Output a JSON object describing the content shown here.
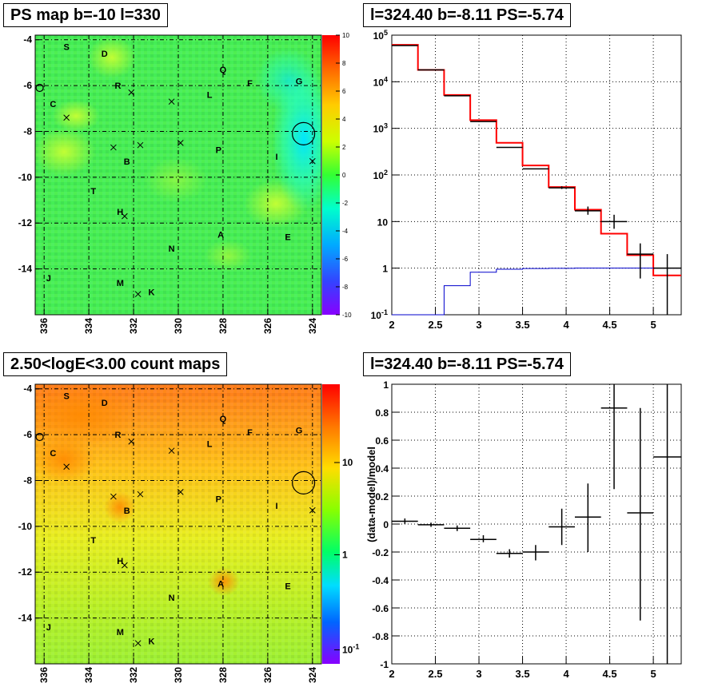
{
  "panels": {
    "tl_title": "PS map b=-10 l=330",
    "tr_title": "l=324.40 b=-8.11 PS=-5.74",
    "bl_title": "2.50<logE<3.00 count maps",
    "br_title": "l=324.40 b=-8.11 PS=-5.74"
  },
  "colors": {
    "model_line": "#ff0000",
    "data_marks": "#000000",
    "background_line": "#0000cc",
    "grid": "#000000"
  },
  "chart_data": [
    {
      "type": "heatmap",
      "title": "PS map b=-10 l=330",
      "xlim": [
        336.4,
        323.6
      ],
      "ylim": [
        -16,
        -3.8
      ],
      "xticks": [
        "336",
        "334",
        "332",
        "330",
        "328",
        "326",
        "324"
      ],
      "yticks": [
        "-4",
        "-6",
        "-8",
        "-10",
        "-12",
        "-14"
      ],
      "colorbar_range": [
        -10,
        10
      ],
      "colorbar_ticks": [
        "10",
        "8",
        "6",
        "4",
        "2",
        "0",
        "-2",
        "-4",
        "-6",
        "-8",
        "-10"
      ],
      "grid": true,
      "source_labels": [
        {
          "t": "S",
          "l": 335.0,
          "b": -4.3
        },
        {
          "t": "D",
          "l": 333.3,
          "b": -4.6
        },
        {
          "t": "R",
          "l": 332.7,
          "b": -6.0
        },
        {
          "t": "C",
          "l": 335.6,
          "b": -6.8
        },
        {
          "t": "Q",
          "l": 328.0,
          "b": -5.3
        },
        {
          "t": "L",
          "l": 328.6,
          "b": -6.4
        },
        {
          "t": "F",
          "l": 326.8,
          "b": -5.9
        },
        {
          "t": "G",
          "l": 324.6,
          "b": -5.8
        },
        {
          "t": "P",
          "l": 328.2,
          "b": -8.8
        },
        {
          "t": "I",
          "l": 325.6,
          "b": -9.1
        },
        {
          "t": "B",
          "l": 332.3,
          "b": -9.3
        },
        {
          "t": "T",
          "l": 333.8,
          "b": -10.6
        },
        {
          "t": "H",
          "l": 332.6,
          "b": -11.5
        },
        {
          "t": "A",
          "l": 328.1,
          "b": -12.5
        },
        {
          "t": "E",
          "l": 325.1,
          "b": -12.6
        },
        {
          "t": "N",
          "l": 330.3,
          "b": -13.1
        },
        {
          "t": "J",
          "l": 335.8,
          "b": -14.4
        },
        {
          "t": "M",
          "l": 332.6,
          "b": -14.6
        },
        {
          "t": "K",
          "l": 331.2,
          "b": -15.0
        }
      ],
      "crosses": [
        {
          "l": 335.0,
          "b": -7.4
        },
        {
          "l": 332.1,
          "b": -6.3
        },
        {
          "l": 330.3,
          "b": -6.7
        },
        {
          "l": 332.9,
          "b": -8.7
        },
        {
          "l": 331.7,
          "b": -8.6
        },
        {
          "l": 329.9,
          "b": -8.5
        },
        {
          "l": 324.0,
          "b": -9.3
        },
        {
          "l": 332.4,
          "b": -11.7
        },
        {
          "l": 331.8,
          "b": -15.1
        }
      ],
      "circles": [
        {
          "l": 336.2,
          "b": -6.1,
          "r": 0.15
        },
        {
          "l": 324.4,
          "b": -8.1,
          "r": 0.5
        }
      ]
    },
    {
      "type": "line",
      "title": "l=324.40 b=-8.11 PS=-5.74",
      "xlim": [
        2,
        5.32
      ],
      "ylim": [
        0.1,
        100000
      ],
      "yscale": "log",
      "xticks": [
        "2",
        "2.5",
        "3",
        "3.5",
        "4",
        "4.5",
        "5"
      ],
      "yticks": [
        "10^-1",
        "1",
        "10",
        "10^2",
        "10^3",
        "10^4",
        "10^5"
      ],
      "grid": true,
      "bin_edges": [
        2.0,
        2.3,
        2.6,
        2.9,
        3.2,
        3.5,
        3.8,
        4.1,
        4.4,
        4.7,
        5.0,
        5.32
      ],
      "series": [
        {
          "values": [
            62000,
            18000,
            5200,
            1500,
            490,
            160,
            55,
            18,
            5.5,
            1.9,
            0.7
          ],
          "style": "step",
          "color": "#ff0000"
        },
        {
          "values": [
            0.1,
            0.1,
            0.42,
            0.82,
            0.95,
            0.98,
            0.99,
            1.0,
            1.0,
            1.0,
            1.0
          ],
          "style": "step",
          "color": "#0000cc"
        }
      ],
      "points": [
        {
          "x": 2.15,
          "y": 60000,
          "dx": 0.15,
          "ylo": 60000,
          "yhi": 60000
        },
        {
          "x": 2.45,
          "y": 18000,
          "dx": 0.15,
          "ylo": 18000,
          "yhi": 18000
        },
        {
          "x": 2.75,
          "y": 5000,
          "dx": 0.15,
          "ylo": 5000,
          "yhi": 5000
        },
        {
          "x": 3.05,
          "y": 1400,
          "dx": 0.15,
          "ylo": 1400,
          "yhi": 1400
        },
        {
          "x": 3.35,
          "y": 390,
          "dx": 0.15,
          "ylo": 390,
          "yhi": 390
        },
        {
          "x": 3.65,
          "y": 135,
          "dx": 0.15,
          "ylo": 135,
          "yhi": 135
        },
        {
          "x": 3.95,
          "y": 53,
          "dx": 0.15,
          "ylo": 50,
          "yhi": 57
        },
        {
          "x": 4.25,
          "y": 17,
          "dx": 0.15,
          "ylo": 14,
          "yhi": 21
        },
        {
          "x": 4.55,
          "y": 10,
          "dx": 0.15,
          "ylo": 7,
          "yhi": 14
        },
        {
          "x": 4.85,
          "y": 2,
          "dx": 0.15,
          "ylo": 0.6,
          "yhi": 3.4
        },
        {
          "x": 5.16,
          "y": 1,
          "dx": 0.16,
          "ylo": 0.1,
          "yhi": 2
        }
      ]
    },
    {
      "type": "heatmap",
      "title": "2.50<logE<3.00 count maps",
      "xlim": [
        336.4,
        323.6
      ],
      "ylim": [
        -16,
        -3.8
      ],
      "xticks": [
        "336",
        "334",
        "332",
        "330",
        "328",
        "326",
        "324"
      ],
      "yticks": [
        "-4",
        "-6",
        "-8",
        "-10",
        "-12",
        "-14"
      ],
      "colorbar_scale": "log",
      "colorbar_ticks": [
        "10",
        "1",
        "10^-1"
      ],
      "grid": true
    },
    {
      "type": "scatter",
      "title": "l=324.40 b=-8.11 PS=-5.74",
      "ylabel": "(data-model)/model",
      "xlim": [
        2,
        5.32
      ],
      "ylim": [
        -1,
        1
      ],
      "xticks": [
        "2",
        "2.5",
        "3",
        "3.5",
        "4",
        "4.5",
        "5"
      ],
      "yticks": [
        "1",
        "0.8",
        "0.6",
        "0.4",
        "0.2",
        "0",
        "-0.2",
        "-0.4",
        "-0.6",
        "-0.8",
        "-1"
      ],
      "grid": true,
      "points": [
        {
          "x": 2.15,
          "y": 0.02,
          "dx": 0.15,
          "ylo": 0.0,
          "yhi": 0.04
        },
        {
          "x": 2.45,
          "y": -0.005,
          "dx": 0.15,
          "ylo": -0.02,
          "yhi": 0.01
        },
        {
          "x": 2.75,
          "y": -0.03,
          "dx": 0.15,
          "ylo": -0.05,
          "yhi": -0.01
        },
        {
          "x": 3.05,
          "y": -0.11,
          "dx": 0.15,
          "ylo": -0.13,
          "yhi": -0.08
        },
        {
          "x": 3.35,
          "y": -0.21,
          "dx": 0.15,
          "ylo": -0.24,
          "yhi": -0.18
        },
        {
          "x": 3.65,
          "y": -0.2,
          "dx": 0.15,
          "ylo": -0.26,
          "yhi": -0.15
        },
        {
          "x": 3.95,
          "y": -0.02,
          "dx": 0.15,
          "ylo": -0.15,
          "yhi": 0.11
        },
        {
          "x": 4.25,
          "y": 0.05,
          "dx": 0.15,
          "ylo": -0.2,
          "yhi": 0.29
        },
        {
          "x": 4.55,
          "y": 0.83,
          "dx": 0.15,
          "ylo": 0.25,
          "yhi": 1.0
        },
        {
          "x": 4.85,
          "y": 0.08,
          "dx": 0.15,
          "ylo": -0.69,
          "yhi": 0.83
        },
        {
          "x": 5.16,
          "y": 0.48,
          "dx": 0.16,
          "ylo": -1.0,
          "yhi": 1.0
        }
      ]
    }
  ]
}
